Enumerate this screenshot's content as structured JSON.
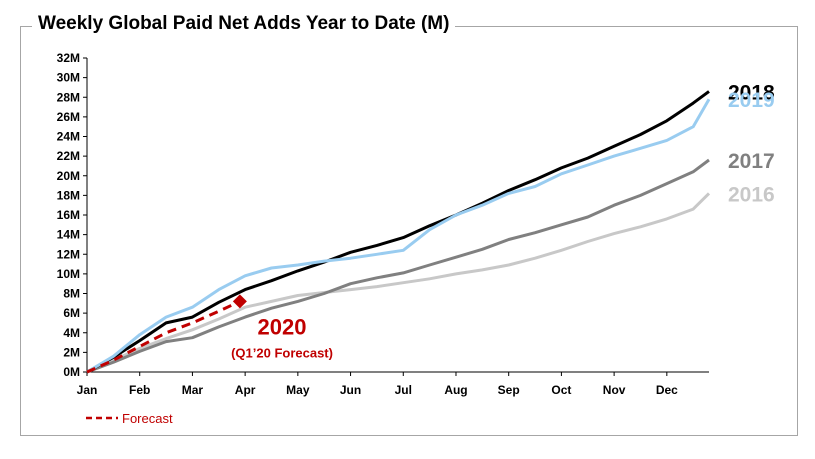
{
  "chart_data": {
    "type": "line",
    "title": "Weekly Global Paid Net Adds Year to Date (M)",
    "xlabel": "",
    "ylabel": "",
    "x_ticks": [
      "Jan",
      "Feb",
      "Mar",
      "Apr",
      "May",
      "Jun",
      "Jul",
      "Aug",
      "Sep",
      "Oct",
      "Nov",
      "Dec"
    ],
    "y_ticks": [
      "0M",
      "2M",
      "4M",
      "6M",
      "8M",
      "10M",
      "12M",
      "14M",
      "16M",
      "18M",
      "20M",
      "22M",
      "24M",
      "26M",
      "28M",
      "30M",
      "32M"
    ],
    "ylim": [
      0,
      32
    ],
    "x_unit": "month",
    "xlim": [
      0,
      11.8
    ],
    "grid": false,
    "legend_position": "bottom-left",
    "legend": [
      {
        "label": "Forecast",
        "style": "dashed",
        "color": "#c00000"
      }
    ],
    "series": [
      {
        "name": "2016",
        "color": "#c8c8c8",
        "x": [
          0,
          0.5,
          1,
          1.5,
          2,
          2.5,
          3,
          3.5,
          4,
          4.5,
          5,
          5.5,
          6,
          6.5,
          7,
          7.5,
          8,
          8.5,
          9,
          9.5,
          10,
          10.5,
          11,
          11.5,
          11.8
        ],
        "values": [
          0,
          1.2,
          2.4,
          3.4,
          4.3,
          5.4,
          6.6,
          7.2,
          7.8,
          8.1,
          8.4,
          8.7,
          9.1,
          9.5,
          10.0,
          10.4,
          10.9,
          11.6,
          12.4,
          13.3,
          14.1,
          14.8,
          15.6,
          16.6,
          18.2
        ]
      },
      {
        "name": "2017",
        "color": "#808080",
        "x": [
          0,
          0.5,
          1,
          1.5,
          2,
          2.5,
          3,
          3.5,
          4,
          4.5,
          5,
          5.5,
          6,
          6.5,
          7,
          7.5,
          8,
          8.5,
          9,
          9.5,
          10,
          10.5,
          11,
          11.5,
          11.8
        ],
        "values": [
          0,
          1.0,
          2.1,
          3.1,
          3.5,
          4.6,
          5.6,
          6.5,
          7.2,
          8.0,
          9.0,
          9.6,
          10.1,
          10.9,
          11.7,
          12.5,
          13.5,
          14.2,
          15.0,
          15.8,
          17.0,
          18.0,
          19.2,
          20.4,
          21.6
        ]
      },
      {
        "name": "2018",
        "color": "#000000",
        "x": [
          0,
          0.5,
          1,
          1.5,
          2,
          2.5,
          3,
          3.5,
          4,
          4.5,
          5,
          5.5,
          6,
          6.5,
          7,
          7.5,
          8,
          8.5,
          9,
          9.5,
          10,
          10.5,
          11,
          11.5,
          11.8
        ],
        "values": [
          0,
          1.5,
          3.2,
          5.0,
          5.6,
          7.1,
          8.4,
          9.3,
          10.3,
          11.2,
          12.2,
          12.9,
          13.7,
          14.9,
          16.0,
          17.2,
          18.5,
          19.6,
          20.8,
          21.8,
          23.0,
          24.2,
          25.6,
          27.4,
          28.6
        ]
      },
      {
        "name": "2019",
        "color": "#99ccf0",
        "x": [
          0,
          0.5,
          1,
          1.5,
          2,
          2.5,
          3,
          3.5,
          4,
          4.5,
          5,
          5.5,
          6,
          6.5,
          7,
          7.5,
          8,
          8.5,
          9,
          9.5,
          10,
          10.5,
          11,
          11.5,
          11.8
        ],
        "values": [
          0,
          1.6,
          3.8,
          5.6,
          6.6,
          8.4,
          9.8,
          10.6,
          10.9,
          11.3,
          11.6,
          12.0,
          12.4,
          14.5,
          16.0,
          17.0,
          18.2,
          18.9,
          20.2,
          21.1,
          22.0,
          22.8,
          23.6,
          25.0,
          27.8
        ]
      },
      {
        "name": "2020",
        "color": "#c00000",
        "style": "dashed",
        "x": [
          0,
          0.5,
          1,
          1.5,
          2,
          2.5,
          2.9
        ],
        "values": [
          0,
          1.2,
          2.6,
          4.0,
          5.0,
          6.2,
          7.2
        ]
      }
    ],
    "annotations": [
      {
        "text": "2020",
        "x": 3.7,
        "y": 3.8
      },
      {
        "text": "(Q1’20 Forecast)",
        "x": 3.7,
        "y": 1.5
      }
    ]
  }
}
